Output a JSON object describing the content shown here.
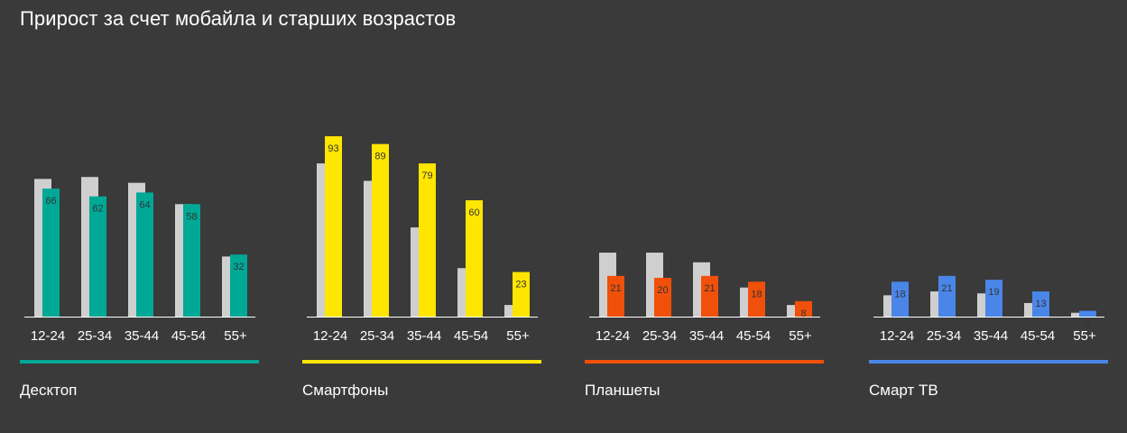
{
  "title": "Прирост за счет мобайла и старших возрастов",
  "chart_data": {
    "type": "bar",
    "title": "Прирост за счет мобайла и старших возрастов",
    "categories": [
      "12-24",
      "25-34",
      "35-44",
      "45-54",
      "55+"
    ],
    "ylim": [
      0,
      100
    ],
    "grid": false,
    "background_series_color": "#cfcfcf",
    "groups": [
      {
        "name": "Десктоп",
        "color": "#00a896",
        "values": [
          66,
          62,
          64,
          58,
          32
        ],
        "background_values": [
          71,
          72,
          69,
          58,
          31
        ]
      },
      {
        "name": "Смартфоны",
        "color": "#ffe600",
        "values": [
          93,
          89,
          79,
          60,
          23
        ],
        "background_values": [
          79,
          70,
          46,
          25,
          6
        ]
      },
      {
        "name": "Планшеты",
        "color": "#f0500a",
        "values": [
          21,
          20,
          21,
          18,
          8
        ],
        "background_values": [
          33,
          33,
          28,
          15,
          6
        ]
      },
      {
        "name": "Смарт ТВ",
        "color": "#4a86e8",
        "values": [
          18,
          21,
          19,
          13,
          3
        ],
        "background_values": [
          11,
          13,
          12,
          7,
          2
        ]
      }
    ]
  }
}
